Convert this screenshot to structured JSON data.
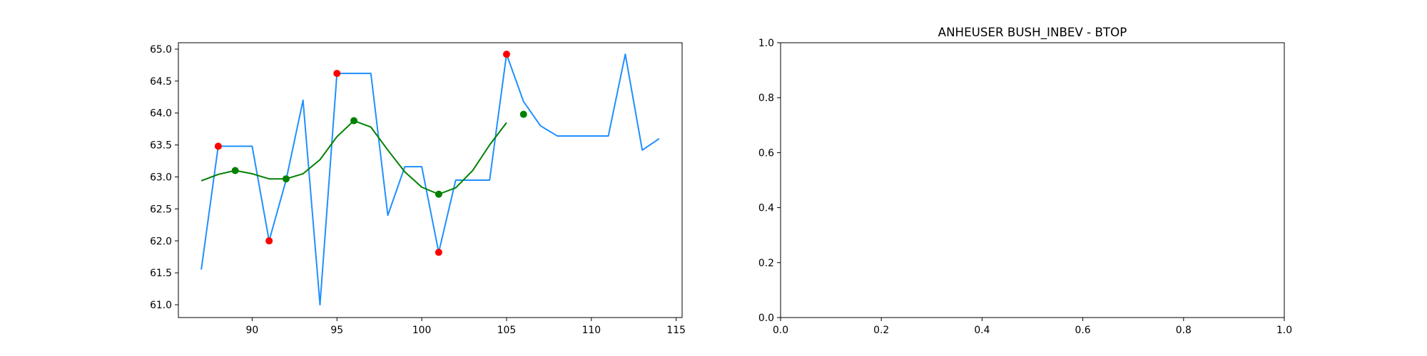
{
  "chart_data": [
    {
      "type": "line",
      "title": "",
      "xlabel": "",
      "ylabel": "",
      "xlim": [
        85.65,
        115.35
      ],
      "ylim": [
        60.8,
        65.1
      ],
      "x_ticks": [
        90,
        95,
        100,
        105,
        110,
        115
      ],
      "x_tick_labels": [
        "90",
        "95",
        "100",
        "105",
        "110",
        "115"
      ],
      "y_ticks": [
        61.0,
        61.5,
        62.0,
        62.5,
        63.0,
        63.5,
        64.0,
        64.5,
        65.0
      ],
      "y_tick_labels": [
        "61.0",
        "61.5",
        "62.0",
        "62.5",
        "63.0",
        "63.5",
        "64.0",
        "64.5",
        "65.0"
      ],
      "grid": false,
      "series": [
        {
          "kind": "line",
          "color": "#1e90ff",
          "x": [
            87,
            88,
            89,
            90,
            91,
            92,
            93,
            94,
            95,
            96,
            97,
            98,
            99,
            100,
            101,
            102,
            103,
            104,
            105,
            106,
            107,
            108,
            109,
            110,
            111,
            112,
            113,
            114
          ],
          "y": [
            61.55,
            63.48,
            63.48,
            63.48,
            62.0,
            62.95,
            64.2,
            61.0,
            64.62,
            64.62,
            64.62,
            62.4,
            63.16,
            63.16,
            61.82,
            62.95,
            62.95,
            62.95,
            64.92,
            64.18,
            63.8,
            63.64,
            63.64,
            63.64,
            63.64,
            64.92,
            63.42,
            63.6
          ]
        },
        {
          "kind": "line",
          "color": "#008000",
          "x": [
            87,
            88,
            89,
            90,
            91,
            92,
            93,
            94,
            95,
            96,
            97,
            98,
            99,
            100,
            101,
            102,
            103,
            104,
            105
          ],
          "y": [
            62.94,
            63.04,
            63.1,
            63.05,
            62.97,
            62.97,
            63.05,
            63.27,
            63.63,
            63.88,
            63.78,
            63.42,
            63.08,
            62.84,
            62.73,
            62.83,
            63.1,
            63.5,
            63.85
          ]
        },
        {
          "kind": "scatter",
          "color": "#ff0000",
          "x": [
            88,
            91,
            95,
            101,
            105
          ],
          "y": [
            63.48,
            62.0,
            64.62,
            61.82,
            64.92
          ]
        },
        {
          "kind": "scatter",
          "color": "#008000",
          "x": [
            89,
            92,
            96,
            101,
            106
          ],
          "y": [
            63.1,
            62.97,
            63.88,
            62.73,
            63.98
          ]
        }
      ]
    },
    {
      "type": "line",
      "title": "ANHEUSER BUSH_INBEV - BTOP",
      "xlabel": "",
      "ylabel": "",
      "xlim": [
        0.0,
        1.0
      ],
      "ylim": [
        0.0,
        1.0
      ],
      "x_ticks": [
        0.0,
        0.2,
        0.4,
        0.6,
        0.8,
        1.0
      ],
      "x_tick_labels": [
        "0.0",
        "0.2",
        "0.4",
        "0.6",
        "0.8",
        "1.0"
      ],
      "y_ticks": [
        0.0,
        0.2,
        0.4,
        0.6,
        0.8,
        1.0
      ],
      "y_tick_labels": [
        "0.0",
        "0.2",
        "0.4",
        "0.6",
        "0.8",
        "1.0"
      ],
      "grid": false,
      "series": []
    }
  ]
}
